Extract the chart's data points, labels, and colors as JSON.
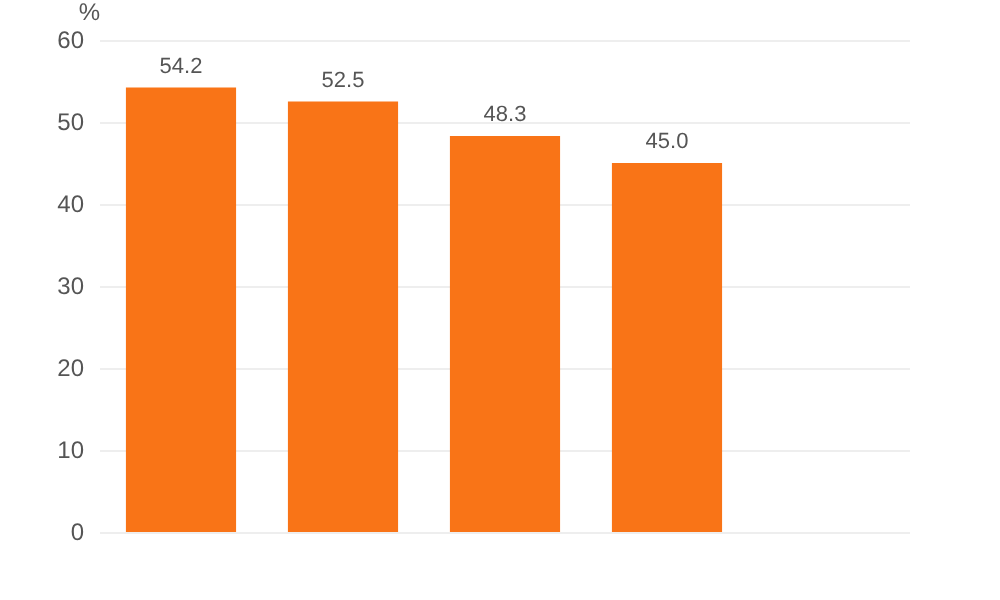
{
  "chart_data": {
    "type": "bar",
    "ylabel": "%",
    "categories": [
      null,
      null,
      null,
      null,
      null
    ],
    "values": [
      54.2,
      52.5,
      48.3,
      45.0,
      null
    ],
    "color": "#f97417",
    "ylim": [
      0,
      60
    ],
    "yticks": [
      0,
      10,
      20,
      30,
      40,
      50,
      60
    ],
    "grid": "y",
    "value_labels": [
      "54.2",
      "52.5",
      "48.3",
      "45.0",
      null
    ]
  }
}
